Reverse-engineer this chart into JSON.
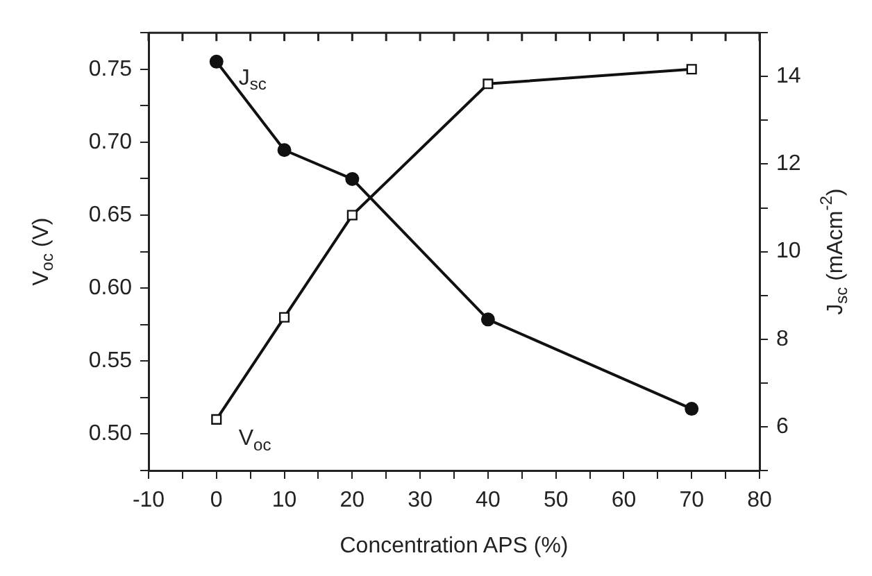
{
  "chart_data": {
    "type": "line",
    "xlabel": "Concentration APS (%)",
    "ylabel": "V$_{oc}$ (V)",
    "y2label": "J$_{sc}$ (mAcm$^{-2}$)",
    "x": [
      0,
      10,
      20,
      40,
      70
    ],
    "xlim": [
      -10,
      80
    ],
    "xticks": [
      -10,
      {
        "value": -5,
        "label": null
      },
      0,
      {
        "value": 5,
        "label": null
      },
      10,
      {
        "value": 15,
        "label": null
      },
      20,
      {
        "value": 25,
        "label": null
      },
      30,
      {
        "value": 35,
        "label": null
      },
      40,
      {
        "value": 45,
        "label": null
      },
      50,
      {
        "value": 55,
        "label": null
      },
      60,
      {
        "value": 65,
        "label": null
      },
      70,
      {
        "value": 75,
        "label": null
      },
      80
    ],
    "ylim": [
      0.475,
      0.775
    ],
    "yticks": [
      {
        "value": 0.475,
        "label": null
      },
      {
        "value": 0.5,
        "label": "0.50"
      },
      {
        "value": 0.525,
        "label": null
      },
      {
        "value": 0.55,
        "label": "0.55"
      },
      {
        "value": 0.575,
        "label": null
      },
      {
        "value": 0.6,
        "label": "0.60"
      },
      {
        "value": 0.625,
        "label": null
      },
      {
        "value": 0.65,
        "label": "0.65"
      },
      {
        "value": 0.675,
        "label": null
      },
      {
        "value": 0.7,
        "label": "0.70"
      },
      {
        "value": 0.725,
        "label": null
      },
      {
        "value": 0.75,
        "label": "0.75"
      },
      {
        "value": 0.775,
        "label": null
      }
    ],
    "y2lim": [
      5,
      15
    ],
    "y2ticks": [
      {
        "value": 5,
        "label": null
      },
      6,
      {
        "value": 7,
        "label": null
      },
      8,
      {
        "value": 9,
        "label": null
      },
      10,
      {
        "value": 11,
        "label": null
      },
      12,
      {
        "value": 13,
        "label": null
      },
      14,
      {
        "value": 15,
        "label": null
      }
    ],
    "series": [
      {
        "name": "J$_{sc}$",
        "color": "#111111",
        "axis": "y2",
        "marker": "circle",
        "values": [
          14.34,
          12.32,
          11.66,
          8.45,
          6.41
        ]
      },
      {
        "name": "V$_{oc}$",
        "color": "#111111",
        "axis": "y",
        "marker": "square",
        "values": [
          0.51,
          0.58,
          0.65,
          0.74,
          0.75
        ]
      }
    ],
    "grid": false,
    "legend": false,
    "line_style": "solid"
  }
}
